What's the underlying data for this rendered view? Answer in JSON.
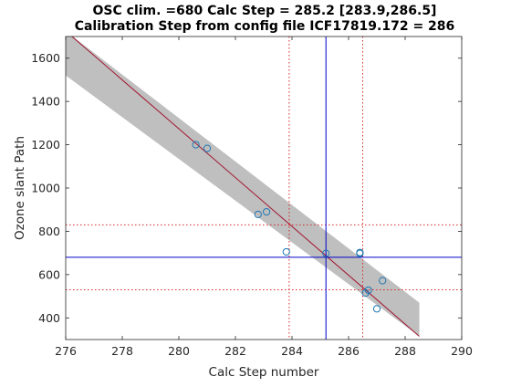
{
  "chart_data": {
    "type": "scatter",
    "title_line1": "OSC clim. =680   Calc Step = 285.2 [283.9,286.5]",
    "title_line2": "Calibration Step from config file ICF17819.172 = 286",
    "xlabel": "Calc Step number",
    "ylabel": "Ozone slant Path",
    "xlim": [
      276,
      290
    ],
    "ylim": [
      300,
      1700
    ],
    "xticks": [
      276,
      278,
      280,
      282,
      284,
      286,
      288,
      290
    ],
    "yticks": [
      400,
      600,
      800,
      1000,
      1200,
      1400,
      1600
    ],
    "grid": false,
    "points": [
      {
        "x": 280.6,
        "y": 1200
      },
      {
        "x": 281.0,
        "y": 1183
      },
      {
        "x": 282.8,
        "y": 878
      },
      {
        "x": 283.1,
        "y": 890
      },
      {
        "x": 283.8,
        "y": 705
      },
      {
        "x": 285.2,
        "y": 698
      },
      {
        "x": 286.4,
        "y": 702
      },
      {
        "x": 286.4,
        "y": 698
      },
      {
        "x": 286.6,
        "y": 515
      },
      {
        "x": 286.7,
        "y": 528
      },
      {
        "x": 287.0,
        "y": 442
      },
      {
        "x": 287.2,
        "y": 572
      }
    ],
    "fit_line": {
      "x": [
        276.0,
        288.5
      ],
      "y": [
        1725,
        315
      ]
    },
    "confidence_band": {
      "x": [
        276.0,
        288.5
      ],
      "upper": [
        1725,
        470
      ],
      "lower": [
        1520,
        315
      ]
    },
    "reference_lines": {
      "vertical_solid": 285.2,
      "vertical_dotted": [
        283.9,
        286.5
      ],
      "horizontal_solid": 680,
      "horizontal_dotted": [
        530,
        830
      ]
    },
    "colors": {
      "points": "#1f77b4",
      "fit_line": "#a2142f",
      "band": "#bfbfbf",
      "solid_ref": "#0000cc",
      "dotted_ref": "#d62728"
    }
  }
}
